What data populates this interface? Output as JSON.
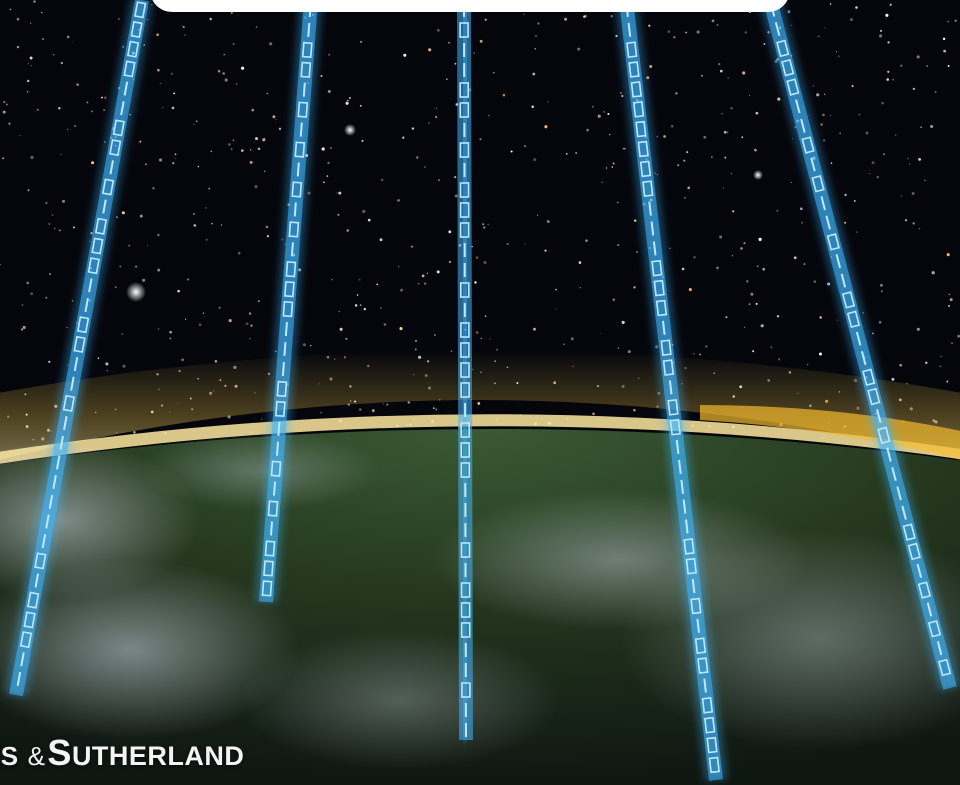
{
  "image": {
    "subject": "binary-beams-over-earth"
  },
  "colors": {
    "space": "#05060c",
    "atmosphere_glow": "#f2c84a",
    "beam": "#3fb6ff",
    "beam_core": "#bfe8ff",
    "earth_land": "#2f4a2c",
    "logo_text": "#f4f4f6"
  },
  "logo": {
    "fragment": "IS",
    "ampersand": "&",
    "initial": "S",
    "rest": "UTHERLAND"
  }
}
